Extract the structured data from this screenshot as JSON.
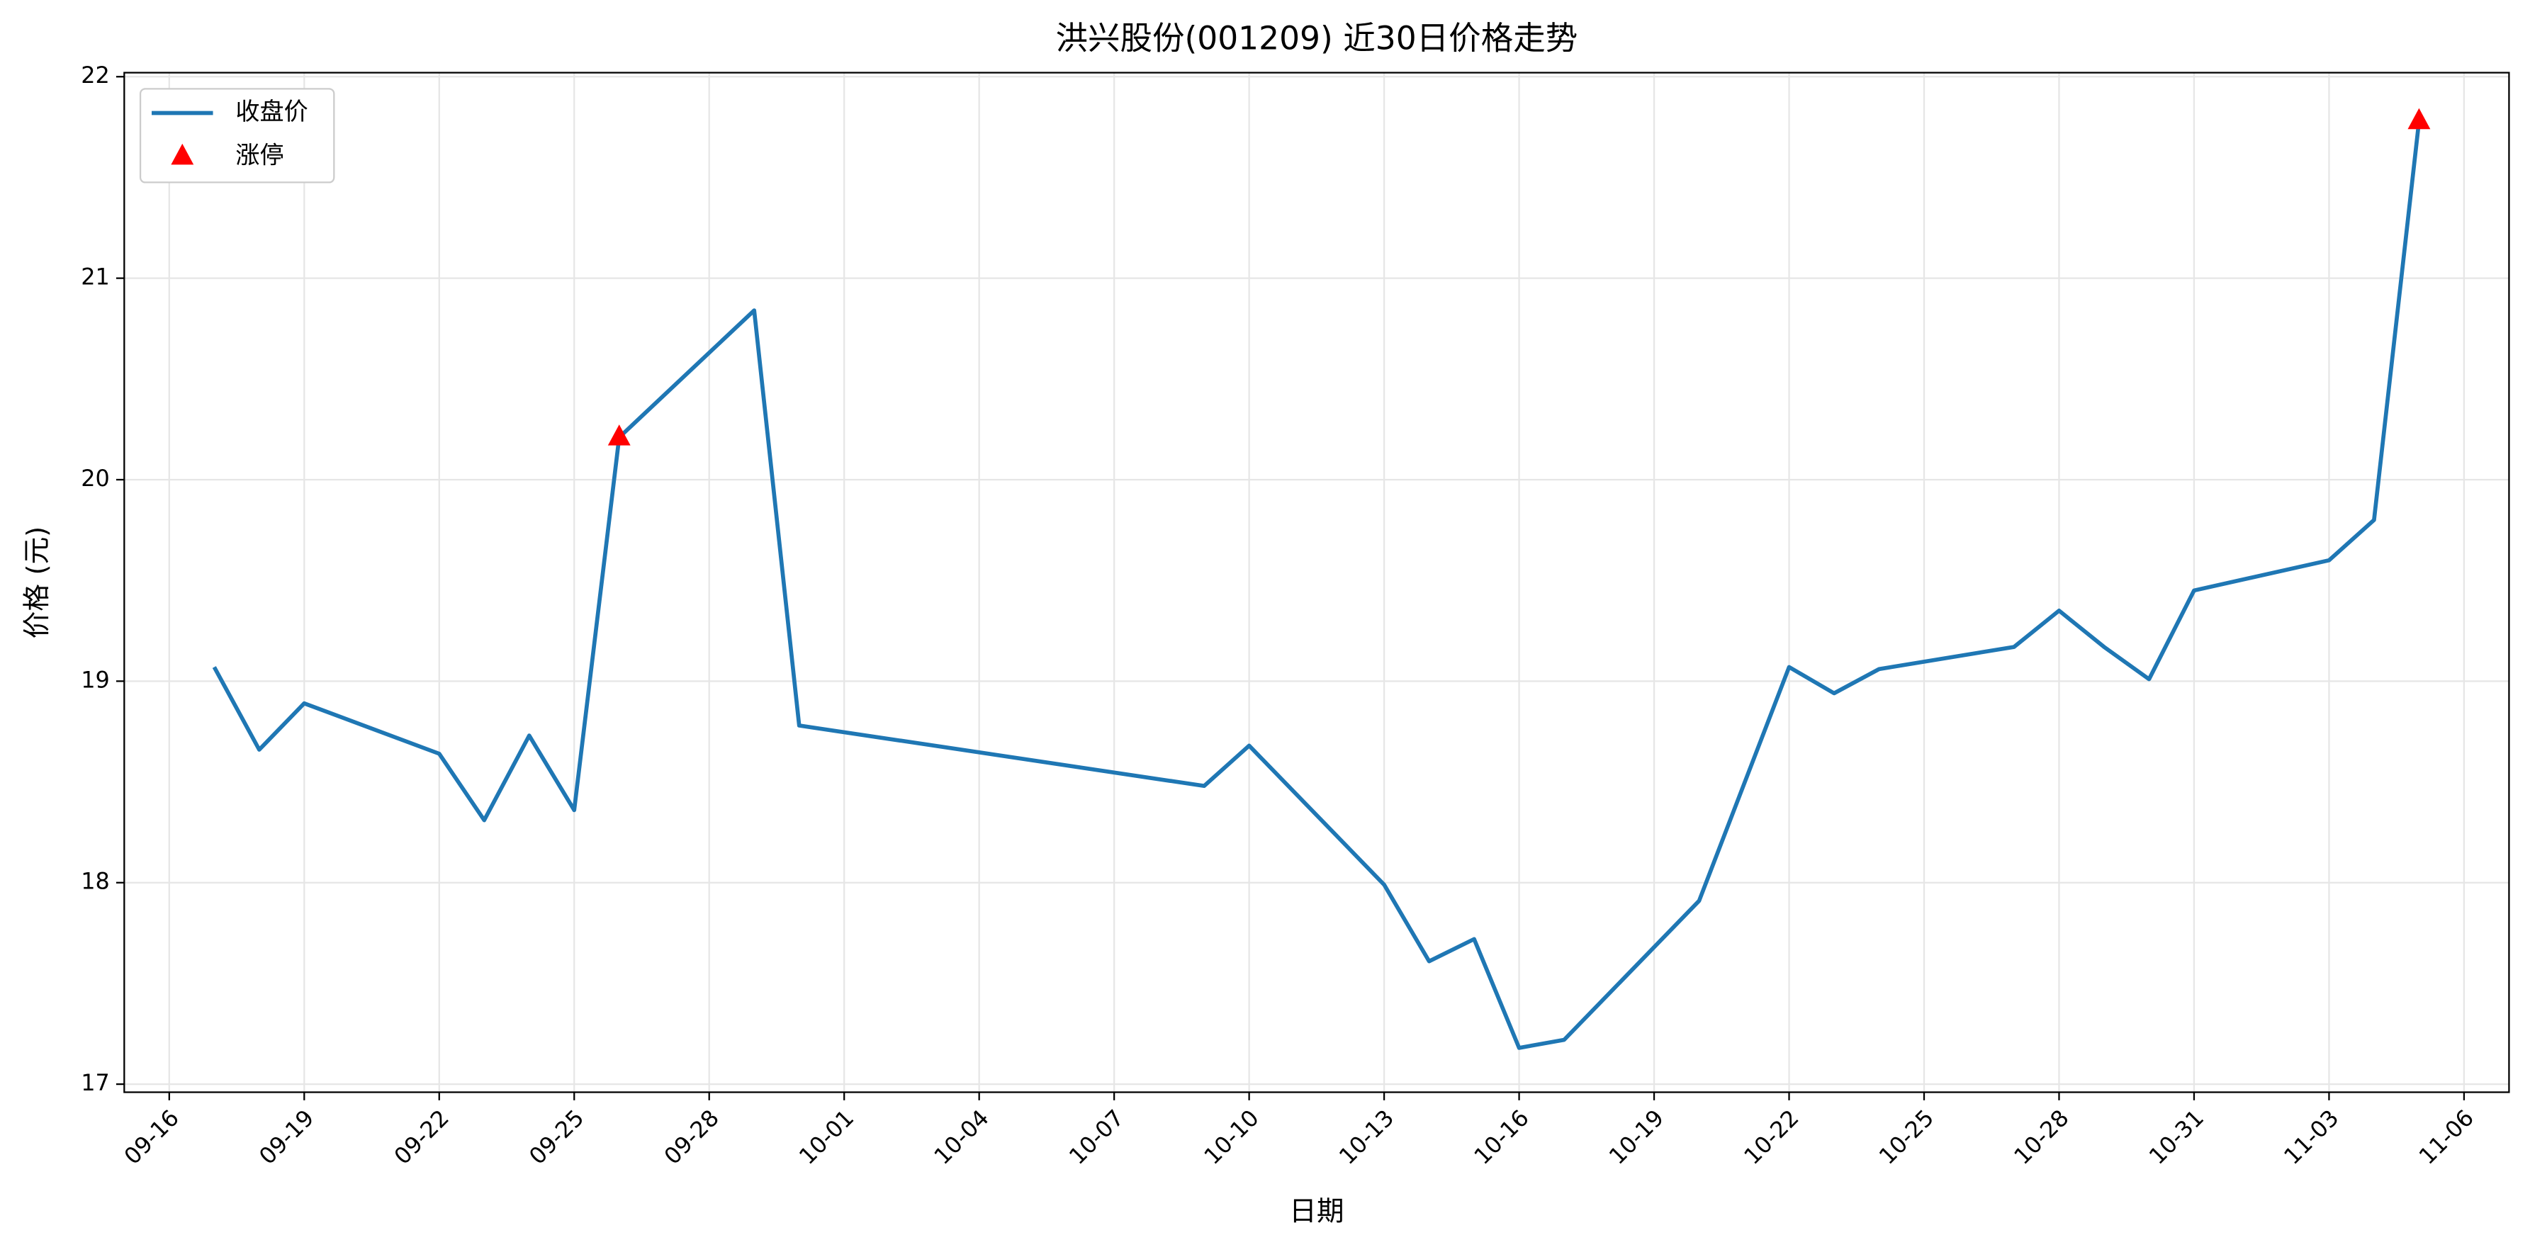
{
  "chart_data": {
    "type": "line",
    "title": "洪兴股份(001209) 近30日价格走势",
    "x_label": "日期",
    "y_label": "价格 (元)",
    "x": [
      "09-17",
      "09-18",
      "09-19",
      "09-22",
      "09-23",
      "09-24",
      "09-25",
      "09-26",
      "09-29",
      "09-30",
      "10-09",
      "10-10",
      "10-13",
      "10-14",
      "10-15",
      "10-16",
      "10-17",
      "10-20",
      "10-22",
      "10-23",
      "10-24",
      "10-27",
      "10-28",
      "10-29",
      "10-30",
      "10-31",
      "11-03",
      "11-04",
      "11-05"
    ],
    "series": [
      {
        "name": "收盘价",
        "color": "#1f77b4",
        "values": [
          19.07,
          18.66,
          18.89,
          18.64,
          18.31,
          18.73,
          18.36,
          20.21,
          20.84,
          18.78,
          18.48,
          18.68,
          17.99,
          17.61,
          17.72,
          17.18,
          17.22,
          17.91,
          19.07,
          18.94,
          19.06,
          19.17,
          19.35,
          19.17,
          19.01,
          19.45,
          19.6,
          19.8,
          21.78
        ]
      },
      {
        "name": "涨停",
        "type": "scatter",
        "color": "#ff0000",
        "x": [
          "09-26",
          "11-05"
        ],
        "values": [
          20.21,
          21.78
        ]
      }
    ],
    "xlim": [
      "09-15",
      "11-07"
    ],
    "xticks": [
      "09-16",
      "09-19",
      "09-22",
      "09-25",
      "09-28",
      "10-01",
      "10-04",
      "10-07",
      "10-10",
      "10-13",
      "10-16",
      "10-19",
      "10-22",
      "10-25",
      "10-28",
      "10-31",
      "11-03",
      "11-06"
    ],
    "ylim": [
      16.96,
      22.02
    ],
    "yticks": [
      17,
      18,
      19,
      20,
      21,
      22
    ],
    "grid": true,
    "legend": "upper left"
  }
}
